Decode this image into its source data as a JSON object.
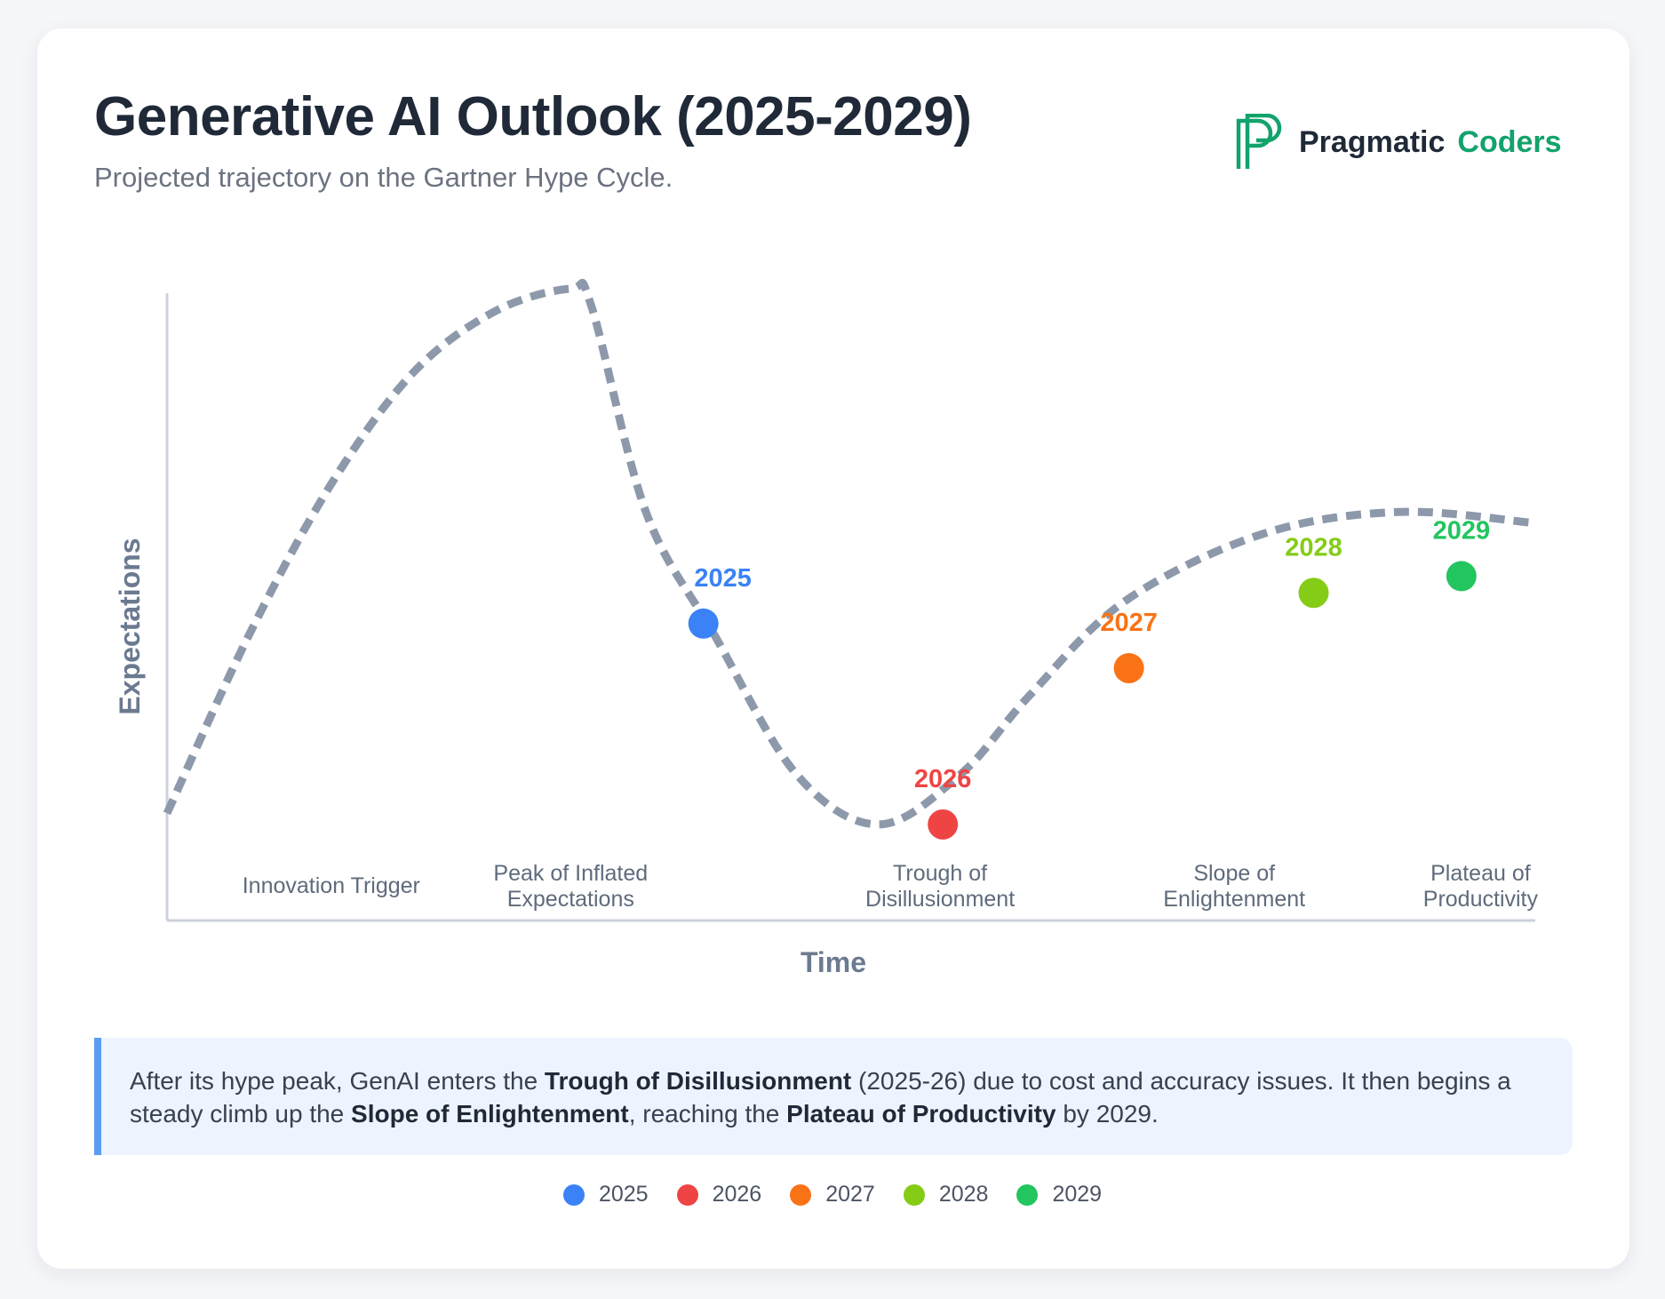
{
  "header": {
    "title": "Generative AI Outlook (2025-2029)",
    "subtitle": "Projected trajectory on the Gartner Hype Cycle."
  },
  "brand": {
    "name_part1": "Pragmatic",
    "name_part2": "Coders",
    "icon": "pragmatic-coders-logo-icon",
    "color": "#12a36b"
  },
  "chart_data": {
    "type": "line",
    "title": "Generative AI Outlook (2025-2029)",
    "xlabel": "Time",
    "ylabel": "Expectations",
    "xlim": [
      0,
      100
    ],
    "ylim": [
      0,
      100
    ],
    "grid": false,
    "curve": {
      "name": "Hype cycle",
      "style": "dashed",
      "color": "#8d99ab",
      "x": [
        0,
        6,
        12,
        18,
        24,
        29.5,
        31,
        35,
        40,
        46,
        52,
        58,
        63,
        70,
        80,
        90,
        100
      ],
      "y": [
        6,
        38,
        65,
        85,
        96,
        100,
        97,
        60,
        38,
        13,
        4,
        13,
        27,
        44,
        56,
        60,
        58
      ]
    },
    "phases": [
      {
        "label": "Innovation Trigger",
        "x": 12
      },
      {
        "label": "Peak of Inflated Expectations",
        "line1": "Peak of Inflated",
        "line2": "Expectations",
        "x": 29.5
      },
      {
        "label": "Trough of Disillusionment",
        "line1": "Trough of",
        "line2": "Disillusionment",
        "x": 56.5
      },
      {
        "label": "Slope of Enlightenment",
        "line1": "Slope of",
        "line2": "Enlightenment",
        "x": 78
      },
      {
        "label": "Plateau of Productivity",
        "line1": "Plateau of",
        "line2": "Productivity",
        "x": 96
      }
    ],
    "points": [
      {
        "label": "2025",
        "x": 39.2,
        "y": 40,
        "color": "#3b82f6"
      },
      {
        "label": "2026",
        "x": 56.7,
        "y": 4,
        "color": "#ef4444"
      },
      {
        "label": "2027",
        "x": 70.3,
        "y": 32,
        "color": "#f97316"
      },
      {
        "label": "2028",
        "x": 83.8,
        "y": 45.5,
        "color": "#84cc16"
      },
      {
        "label": "2029",
        "x": 94.6,
        "y": 48.5,
        "color": "#22c55e"
      }
    ]
  },
  "summary": {
    "part1": "After its hype peak, GenAI enters the ",
    "bold1": "Trough of Disillusionment",
    "part2": " (2025-26) due to cost and accuracy issues. It then begins a steady climb up the ",
    "bold2": "Slope of Enlightenment",
    "part3": ", reaching the ",
    "bold3": "Plateau of Productivity",
    "part4": " by 2029."
  },
  "legend": [
    {
      "label": "2025",
      "color": "#3b82f6"
    },
    {
      "label": "2026",
      "color": "#ef4444"
    },
    {
      "label": "2027",
      "color": "#f97316"
    },
    {
      "label": "2028",
      "color": "#84cc16"
    },
    {
      "label": "2029",
      "color": "#22c55e"
    }
  ]
}
